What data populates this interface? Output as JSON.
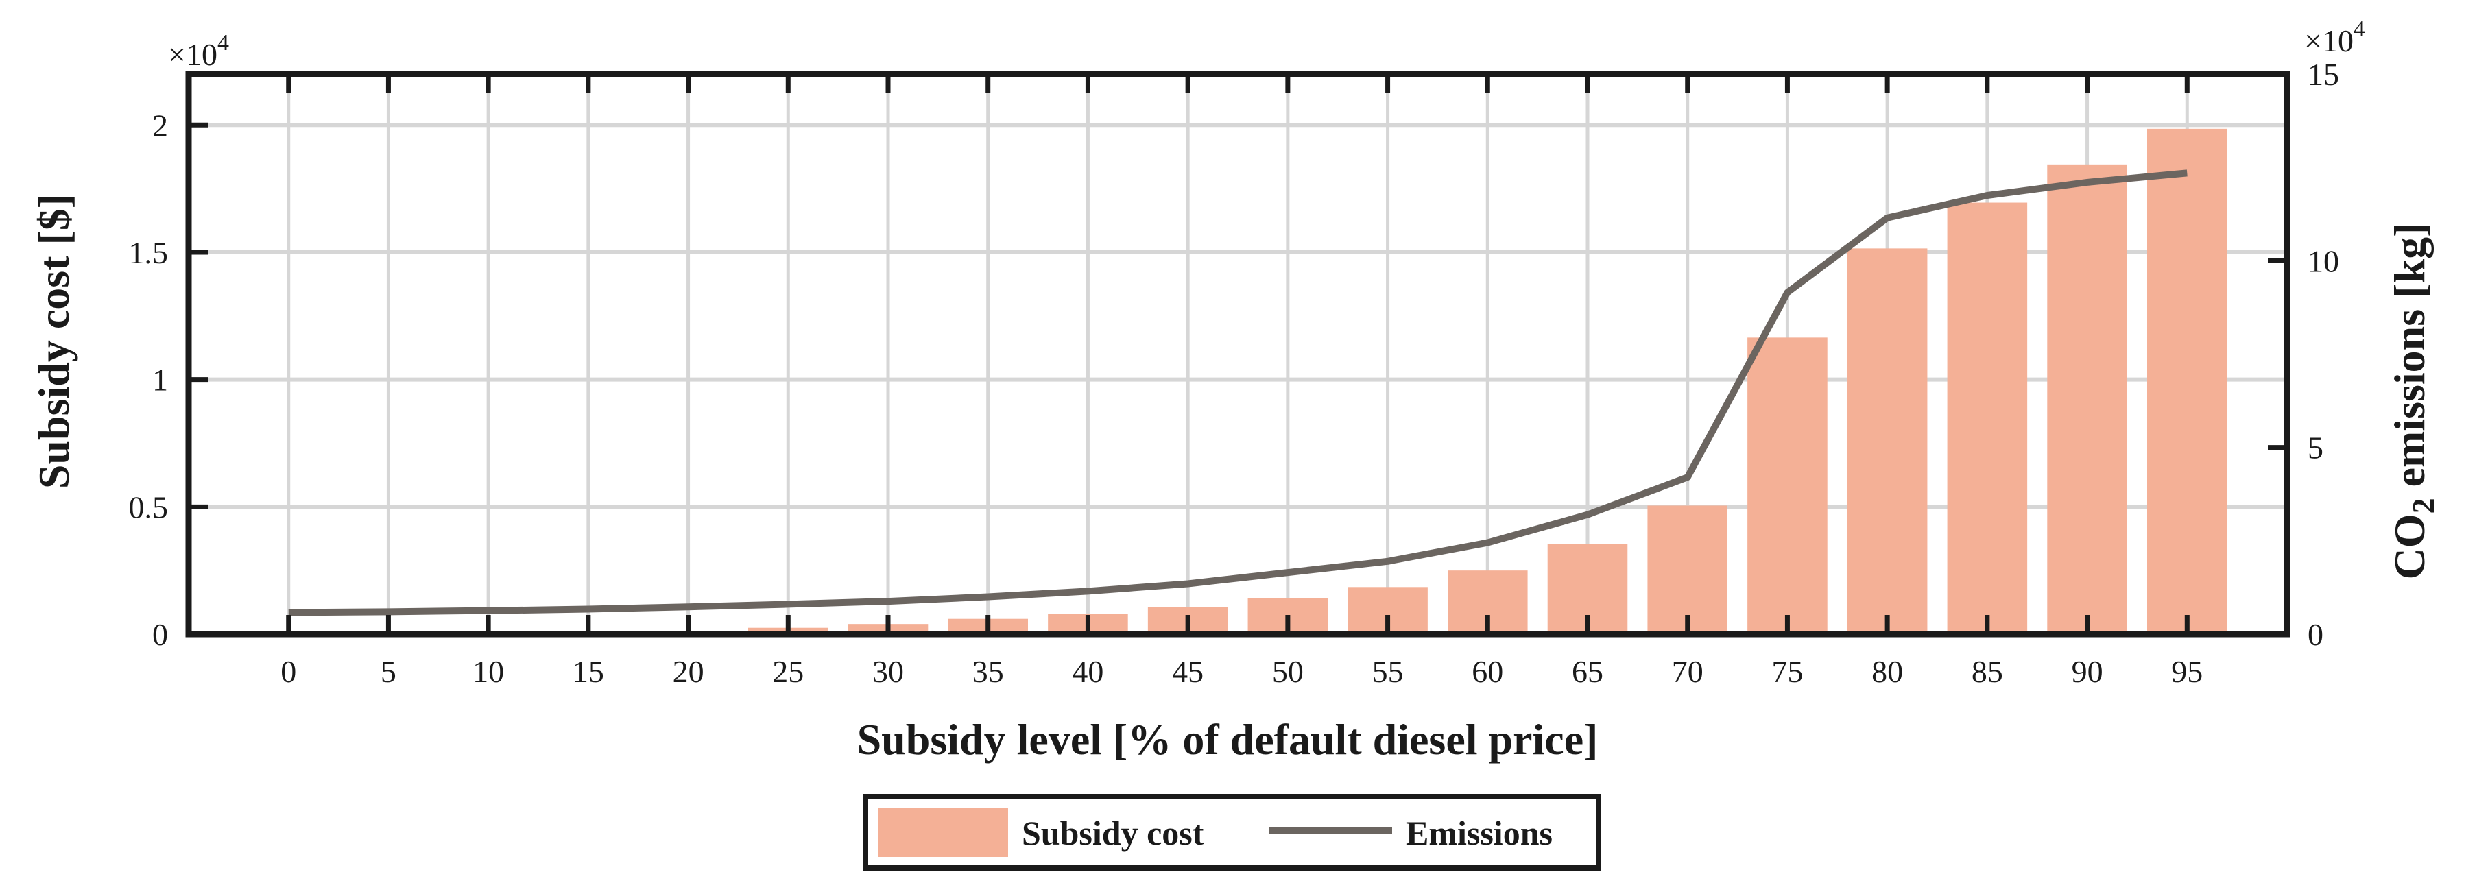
{
  "chart_data": {
    "type": "bar",
    "xlabel": "Subsidy level [% of default diesel price]",
    "ylabel_left": "Subsidy cost [$]",
    "ylabel_right_prefix": "CO",
    "ylabel_right_subscript": "2",
    "ylabel_right_suffix": " emissions [kg]",
    "categories": [
      "0",
      "5",
      "10",
      "15",
      "20",
      "25",
      "30",
      "35",
      "40",
      "45",
      "50",
      "55",
      "60",
      "65",
      "70",
      "75",
      "80",
      "85",
      "90",
      "95"
    ],
    "ylim_left": [
      0,
      22000
    ],
    "yticks_left": [
      0,
      5000,
      10000,
      15000,
      20000
    ],
    "ytick_labels_left": [
      "0",
      "0.5",
      "1",
      "1.5",
      "2"
    ],
    "multiplier_base_left": "×10",
    "multiplier_exp_left": "4",
    "ylim_right": [
      0,
      150000
    ],
    "yticks_right": [
      0,
      50000,
      100000,
      150000
    ],
    "ytick_labels_right": [
      "0",
      "5",
      "10",
      "15"
    ],
    "multiplier_base_right": "×10",
    "multiplier_exp_right": "4",
    "grid": true,
    "series": [
      {
        "name": "Subsidy cost",
        "type": "bar",
        "axis": "left",
        "color": "#f4b096",
        "values": [
          0,
          0,
          0,
          0,
          100,
          250,
          400,
          600,
          800,
          1050,
          1400,
          1850,
          2500,
          3550,
          5050,
          11650,
          15150,
          16950,
          18450,
          19850
        ]
      },
      {
        "name": "Emissions",
        "type": "line",
        "axis": "right",
        "color": "#6b6560",
        "values": [
          5800,
          6000,
          6300,
          6700,
          7300,
          8000,
          8800,
          10000,
          11500,
          13500,
          16500,
          19500,
          24500,
          32000,
          42000,
          91500,
          111500,
          117500,
          121000,
          123500
        ]
      }
    ],
    "legend_position": "bottom-center"
  }
}
